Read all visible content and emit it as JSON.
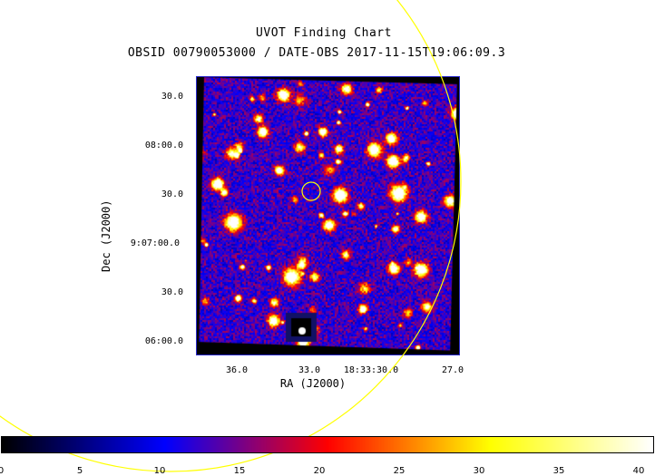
{
  "chart": {
    "title": "UVOT Finding Chart",
    "subtitle": "OBSID 00790053000 / DATE-OBS 2017-11-15T19:06:09.3",
    "ylabel": "Dec (J2000)",
    "xlabel": "RA (J2000)",
    "yticks": [
      "30.0",
      "08:00.0",
      "30.0",
      "9:07:00.0",
      "30.0",
      "06:00.0"
    ],
    "xticks": [
      "36.0",
      "33.0",
      "18:33:30.0",
      "27.0"
    ],
    "colorbar": {
      "ticks": [
        "0",
        "5",
        "10",
        "15",
        "20",
        "25",
        "30",
        "35",
        "40"
      ],
      "min": 0,
      "max": 40,
      "colors": [
        "#000000",
        "#0000ff",
        "#ff0000",
        "#ffff00",
        "#ffffff"
      ]
    },
    "colors": {
      "frame": "#2a2acc",
      "marker": "#ffff00",
      "large_circle": "#ffff00"
    }
  }
}
